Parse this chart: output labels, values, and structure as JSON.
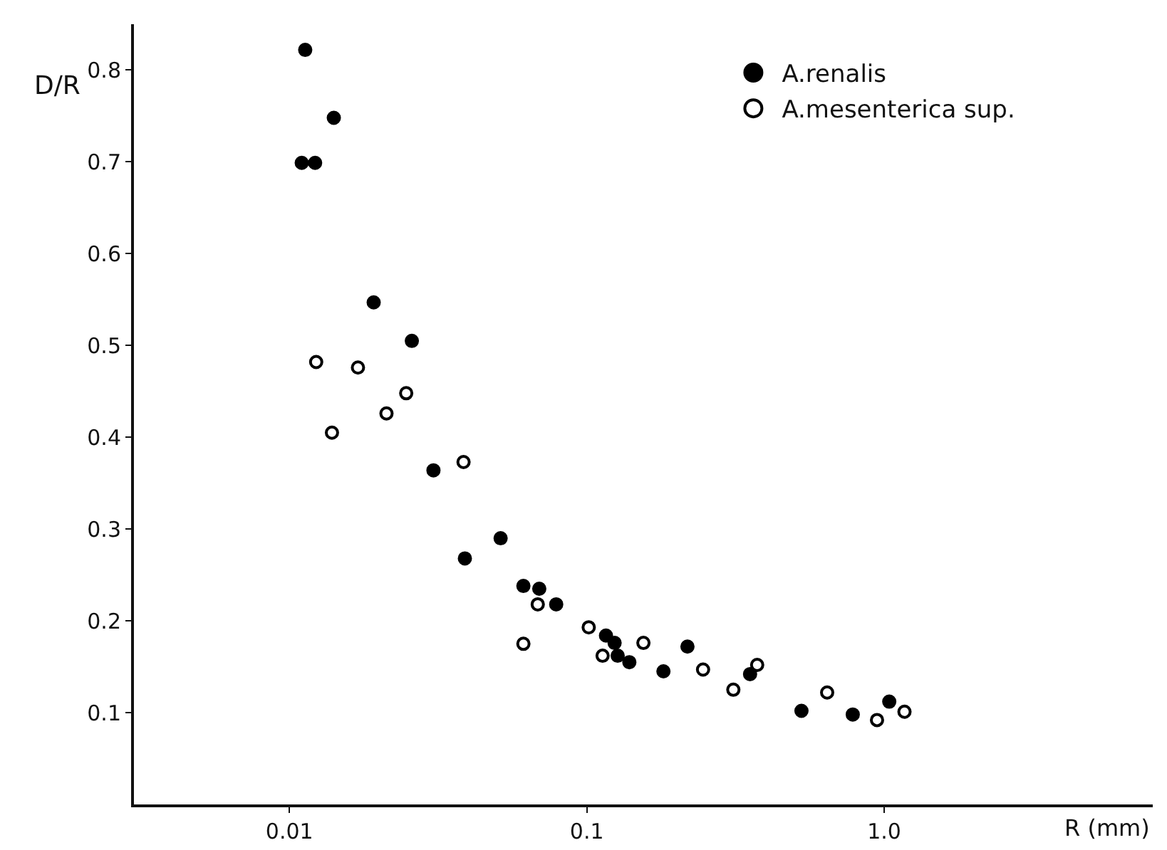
{
  "chart_data": {
    "type": "scatter",
    "xlabel": "R (mm)",
    "ylabel": "D/R",
    "log": "x",
    "grid": false,
    "legend": "top right",
    "marker": "circle",
    "xlim": [
      0.003,
      8
    ],
    "xticks": [
      0.01,
      0.1,
      {
        "value": 1,
        "label": "1.0"
      }
    ],
    "ylim": [
      0,
      0.85
    ],
    "yticks": [
      0.1,
      0.2,
      0.3,
      0.4,
      0.5,
      0.6,
      0.7,
      0.8
    ],
    "series": [
      {
        "name": "A.renalis",
        "color": "#000000",
        "marker": "circle",
        "x": [
          0.0113,
          0.0141,
          0.011,
          0.0122,
          0.0192,
          0.0258,
          0.0305,
          0.0389,
          0.0513,
          0.0612,
          0.0692,
          0.0789,
          0.116,
          0.124,
          0.127,
          0.139,
          0.181,
          0.218,
          0.354,
          0.527,
          0.784,
          1.04
        ],
        "values": [
          0.822,
          0.748,
          0.699,
          0.699,
          0.547,
          0.505,
          0.364,
          0.268,
          0.29,
          0.238,
          0.235,
          0.218,
          0.184,
          0.176,
          0.162,
          0.155,
          0.145,
          0.172,
          0.142,
          0.102,
          0.098,
          0.112
        ]
      },
      {
        "name": "A.mesenterica sup.",
        "color": "#000000",
        "marker": "circle-open",
        "x": [
          0.0123,
          0.017,
          0.0247,
          0.0212,
          0.0139,
          0.0385,
          0.0612,
          0.0684,
          0.1015,
          0.113,
          0.155,
          0.246,
          0.311,
          0.374,
          0.643,
          0.946,
          1.17
        ],
        "values": [
          0.482,
          0.476,
          0.448,
          0.426,
          0.405,
          0.373,
          0.175,
          0.218,
          0.193,
          0.162,
          0.176,
          0.147,
          0.125,
          0.152,
          0.122,
          0.092,
          0.101
        ]
      }
    ]
  }
}
